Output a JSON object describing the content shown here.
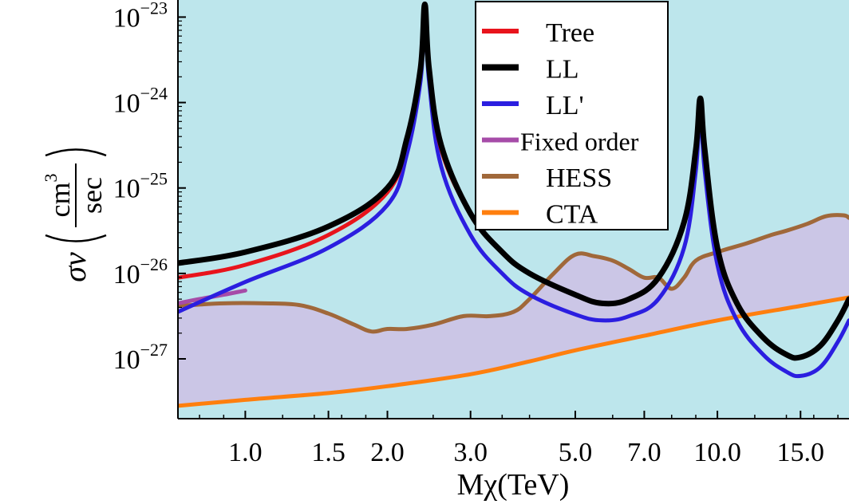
{
  "chart_data": {
    "type": "line",
    "title": "",
    "xlabel": "Mχ(TeV)",
    "ylabel_prefix": "σv",
    "ylabel_num": "cm3",
    "ylabel_den": "sec",
    "x_scale": "log",
    "y_scale": "log",
    "xlim": [
      0.72,
      19.0
    ],
    "ylim_exp": [
      -27.7,
      -22.8
    ],
    "x_ticks": [
      {
        "value": 1.0,
        "label": "1.0"
      },
      {
        "value": 1.5,
        "label": "1.5"
      },
      {
        "value": 2.0,
        "label": "2.0"
      },
      {
        "value": 3.0,
        "label": "3.0"
      },
      {
        "value": 5.0,
        "label": "5.0"
      },
      {
        "value": 7.0,
        "label": "7.0"
      },
      {
        "value": 10.0,
        "label": "10.0"
      },
      {
        "value": 15.0,
        "label": "15.0"
      }
    ],
    "y_ticks": [
      {
        "exp": -23,
        "base": "10",
        "sup": "−23"
      },
      {
        "exp": -24,
        "base": "10",
        "sup": "−24"
      },
      {
        "exp": -25,
        "base": "10",
        "sup": "−25"
      },
      {
        "exp": -26,
        "base": "10",
        "sup": "−26"
      },
      {
        "exp": -27,
        "base": "10",
        "sup": "−27"
      }
    ],
    "background_color": "#bde6ec",
    "excluded_fill_color": "#cbc6e6",
    "legend_position": "top-center",
    "series": [
      {
        "name": "Tree",
        "color": "#e8141c",
        "width": 5,
        "x": [
          0.72,
          1.0,
          1.5,
          2.0,
          2.2,
          2.35,
          2.4,
          2.45,
          2.6,
          3.0,
          3.5,
          4.0,
          5.0,
          5.7,
          6.5,
          7.5,
          8.5,
          9.0,
          9.2,
          9.4,
          10.0,
          11.0,
          12.5,
          14.0,
          15.0,
          16.5,
          18.0,
          19.0
        ],
        "y_exp": [
          -26.05,
          -25.9,
          -25.55,
          -25.05,
          -24.45,
          -23.6,
          -22.85,
          -23.6,
          -24.55,
          -25.3,
          -25.75,
          -26.0,
          -26.25,
          -26.35,
          -26.3,
          -26.05,
          -25.4,
          -24.6,
          -24.05,
          -24.6,
          -25.7,
          -26.35,
          -26.75,
          -26.95,
          -26.98,
          -26.85,
          -26.55,
          -26.3
        ]
      },
      {
        "name": "LL",
        "color": "#000000",
        "width": 7,
        "x": [
          0.72,
          1.0,
          1.5,
          2.0,
          2.2,
          2.35,
          2.4,
          2.45,
          2.6,
          3.0,
          3.5,
          4.0,
          5.0,
          5.7,
          6.5,
          7.5,
          8.5,
          9.0,
          9.2,
          9.4,
          10.0,
          11.0,
          12.5,
          14.0,
          15.0,
          16.5,
          18.0,
          19.0
        ],
        "y_exp": [
          -25.88,
          -25.75,
          -25.45,
          -25.0,
          -24.42,
          -23.6,
          -22.85,
          -23.6,
          -24.5,
          -25.3,
          -25.75,
          -26.0,
          -26.25,
          -26.35,
          -26.3,
          -26.05,
          -25.4,
          -24.55,
          -23.95,
          -24.55,
          -25.7,
          -26.35,
          -26.75,
          -26.95,
          -26.98,
          -26.85,
          -26.55,
          -26.3
        ]
      },
      {
        "name": "LL'",
        "color": "#2b1ee0",
        "width": 5,
        "x": [
          0.72,
          1.0,
          1.5,
          2.0,
          2.2,
          2.35,
          2.4,
          2.45,
          2.6,
          3.0,
          3.5,
          4.0,
          5.0,
          5.7,
          6.5,
          7.5,
          8.5,
          9.0,
          9.2,
          9.4,
          10.0,
          11.0,
          12.5,
          14.0,
          15.0,
          16.5,
          18.0,
          19.0
        ],
        "y_exp": [
          -26.45,
          -26.1,
          -25.7,
          -25.2,
          -24.6,
          -23.75,
          -23.0,
          -23.75,
          -24.75,
          -25.55,
          -26.0,
          -26.25,
          -26.48,
          -26.55,
          -26.5,
          -26.3,
          -25.7,
          -24.8,
          -24.1,
          -24.8,
          -25.9,
          -26.55,
          -26.95,
          -27.15,
          -27.2,
          -27.1,
          -26.8,
          -26.55
        ]
      },
      {
        "name": "Fixed order",
        "color": "#a64ca8",
        "width": 5,
        "x": [
          0.72,
          0.8,
          0.9,
          1.0
        ],
        "y_exp": [
          -26.35,
          -26.3,
          -26.25,
          -26.2
        ]
      },
      {
        "name": "HESS",
        "color": "#a0683a",
        "width": 5,
        "x": [
          0.72,
          0.9,
          1.1,
          1.3,
          1.5,
          1.7,
          1.85,
          2.0,
          2.2,
          2.5,
          2.9,
          3.3,
          3.7,
          4.0,
          4.5,
          5.0,
          5.5,
          6.0,
          6.5,
          7.0,
          7.5,
          8.0,
          8.5,
          9.0,
          10.0,
          11.5,
          13.0,
          14.0,
          15.5,
          17.0,
          18.5,
          19.0
        ],
        "y_exp": [
          -26.38,
          -26.35,
          -26.35,
          -26.37,
          -26.47,
          -26.6,
          -26.68,
          -26.65,
          -26.65,
          -26.6,
          -26.5,
          -26.5,
          -26.45,
          -26.3,
          -26.0,
          -25.78,
          -25.8,
          -25.85,
          -25.95,
          -26.05,
          -26.05,
          -26.18,
          -26.05,
          -25.85,
          -25.75,
          -25.65,
          -25.55,
          -25.5,
          -25.42,
          -25.33,
          -25.32,
          -25.35
        ]
      },
      {
        "name": "CTA",
        "color": "#ff7f0e",
        "width": 5,
        "x": [
          0.72,
          1.0,
          1.5,
          2.0,
          3.0,
          4.0,
          5.0,
          7.0,
          10.0,
          15.0,
          19.0
        ],
        "y_exp": [
          -27.55,
          -27.48,
          -27.4,
          -27.32,
          -27.18,
          -27.03,
          -26.9,
          -26.73,
          -26.55,
          -26.38,
          -26.28
        ]
      }
    ]
  }
}
